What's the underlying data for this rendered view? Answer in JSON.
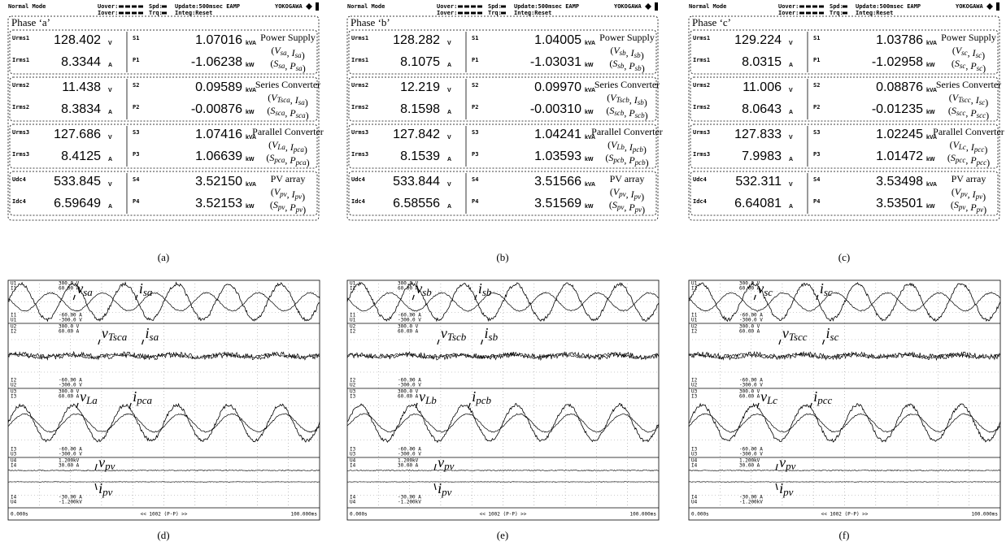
{
  "meter_header": {
    "mode": "Normal Mode",
    "uover": "Uover:",
    "spd": "Spd:",
    "update": "Update:500msec EAMP",
    "brand": "YOKOGAWA",
    "iover": "Iover:",
    "trq": "Trq:",
    "integ": "Integ:Reset"
  },
  "meters": [
    {
      "caption": "(a)",
      "phase": "Phase ‘a’",
      "groups": [
        {
          "rows": [
            {
              "name": "Urms1",
              "value": "128.402",
              "unit": "V",
              "p_name": "S1",
              "p_value": "1.07016",
              "p_unit": "kVA"
            },
            {
              "name": "Irms1",
              "value": "8.3344",
              "unit": "A",
              "p_name": "P1",
              "p_value": "-1.06238",
              "p_unit": "kW"
            }
          ],
          "desc": [
            "Power Supply",
            "(Vsa, Isa)",
            "(Ssa, Psa)"
          ]
        },
        {
          "rows": [
            {
              "name": "Urms2",
              "value": "11.438",
              "unit": "V",
              "p_name": "S2",
              "p_value": "0.09589",
              "p_unit": "kVA"
            },
            {
              "name": "Irms2",
              "value": "8.3834",
              "unit": "A",
              "p_name": "P2",
              "p_value": "-0.00876",
              "p_unit": "kW"
            }
          ],
          "desc": [
            "Series Converter",
            "(VTsca, Isa)",
            "(Ssca, Psca)"
          ]
        },
        {
          "rows": [
            {
              "name": "Urms3",
              "value": "127.686",
              "unit": "V",
              "p_name": "S3",
              "p_value": "1.07416",
              "p_unit": "kVA"
            },
            {
              "name": "Irms3",
              "value": "8.4125",
              "unit": "A",
              "p_name": "P3",
              "p_value": "1.06639",
              "p_unit": "kW"
            }
          ],
          "desc": [
            "Parallel Converter",
            "(VLa, Ipca)",
            "(Spca, Ppca)"
          ]
        },
        {
          "rows": [
            {
              "name": "Udc4",
              "value": "533.845",
              "unit": "V",
              "p_name": "S4",
              "p_value": "3.52150",
              "p_unit": "kVA"
            },
            {
              "name": "Idc4",
              "value": "6.59649",
              "unit": "A",
              "p_name": "P4",
              "p_value": "3.52153",
              "p_unit": "kW"
            }
          ],
          "desc": [
            "PV array",
            "(Vpv, Ipv)",
            "(Spv, Ppv)"
          ]
        }
      ]
    },
    {
      "caption": "(b)",
      "phase": "Phase ‘b’",
      "groups": [
        {
          "rows": [
            {
              "name": "Urms1",
              "value": "128.282",
              "unit": "V",
              "p_name": "S1",
              "p_value": "1.04005",
              "p_unit": "kVA"
            },
            {
              "name": "Irms1",
              "value": "8.1075",
              "unit": "A",
              "p_name": "P1",
              "p_value": "-1.03031",
              "p_unit": "kW"
            }
          ],
          "desc": [
            "Power Supply",
            "(Vsb, Isb)",
            "(Ssb, Psb)"
          ]
        },
        {
          "rows": [
            {
              "name": "Urms2",
              "value": "12.219",
              "unit": "V",
              "p_name": "S2",
              "p_value": "0.09970",
              "p_unit": "kVA"
            },
            {
              "name": "Irms2",
              "value": "8.1598",
              "unit": "A",
              "p_name": "P2",
              "p_value": "-0.00310",
              "p_unit": "kW"
            }
          ],
          "desc": [
            "Series Converter",
            "(VTscb, Isb)",
            "(Sscb, Pscb)"
          ]
        },
        {
          "rows": [
            {
              "name": "Urms3",
              "value": "127.842",
              "unit": "V",
              "p_name": "S3",
              "p_value": "1.04241",
              "p_unit": "kVA"
            },
            {
              "name": "Irms3",
              "value": "8.1539",
              "unit": "A",
              "p_name": "P3",
              "p_value": "1.03593",
              "p_unit": "kW"
            }
          ],
          "desc": [
            "Parallel Converter",
            "(VLb, Ipcb)",
            "(Spcb, Ppcb)"
          ]
        },
        {
          "rows": [
            {
              "name": "Udc4",
              "value": "533.844",
              "unit": "V",
              "p_name": "S4",
              "p_value": "3.51566",
              "p_unit": "kVA"
            },
            {
              "name": "Idc4",
              "value": "6.58556",
              "unit": "A",
              "p_name": "P4",
              "p_value": "3.51569",
              "p_unit": "kW"
            }
          ],
          "desc": [
            "PV array",
            "(Vpv, Ipv)",
            "(Spv, Ppv)"
          ]
        }
      ]
    },
    {
      "caption": "(c)",
      "phase": "Phase ‘c’",
      "groups": [
        {
          "rows": [
            {
              "name": "Urms1",
              "value": "129.224",
              "unit": "V",
              "p_name": "S1",
              "p_value": "1.03786",
              "p_unit": "kVA"
            },
            {
              "name": "Irms1",
              "value": "8.0315",
              "unit": "A",
              "p_name": "P1",
              "p_value": "-1.02958",
              "p_unit": "kW"
            }
          ],
          "desc": [
            "Power Supply",
            "(Vsc, Isc)",
            "(Ssc, Psc)"
          ]
        },
        {
          "rows": [
            {
              "name": "Urms2",
              "value": "11.006",
              "unit": "V",
              "p_name": "S2",
              "p_value": "0.08876",
              "p_unit": "kVA"
            },
            {
              "name": "Irms2",
              "value": "8.0643",
              "unit": "A",
              "p_name": "P2",
              "p_value": "-0.01235",
              "p_unit": "kW"
            }
          ],
          "desc": [
            "Series Converter",
            "(VTscc, Isc)",
            "(Sscc, Pscc)"
          ]
        },
        {
          "rows": [
            {
              "name": "Urms3",
              "value": "127.833",
              "unit": "V",
              "p_name": "S3",
              "p_value": "1.02245",
              "p_unit": "kVA"
            },
            {
              "name": "Irms3",
              "value": "7.9983",
              "unit": "A",
              "p_name": "P3",
              "p_value": "1.01472",
              "p_unit": "kW"
            }
          ],
          "desc": [
            "Parallel Converter",
            "(VLc, Ipcc)",
            "(Spcc, Ppcc)"
          ]
        },
        {
          "rows": [
            {
              "name": "Udc4",
              "value": "532.311",
              "unit": "V",
              "p_name": "S4",
              "p_value": "3.53498",
              "p_unit": "kVA"
            },
            {
              "name": "Idc4",
              "value": "6.64081",
              "unit": "A",
              "p_name": "P4",
              "p_value": "3.53501",
              "p_unit": "kW"
            }
          ],
          "desc": [
            "PV array",
            "(Vpv, Ipv)",
            "(Spv, Ppv)"
          ]
        }
      ]
    }
  ],
  "scope_channels": [
    {
      "top": [
        {
          "ch": "U1",
          "scale": "300.0 V"
        },
        {
          "ch": "I1",
          "scale": "60.00 A"
        }
      ],
      "bottom": [
        {
          "ch": "I1",
          "scale": "-60.00 A"
        },
        {
          "ch": "U1",
          "scale": "-300.0 V"
        }
      ]
    },
    {
      "top": [
        {
          "ch": "U2",
          "scale": "300.0 V"
        },
        {
          "ch": "I2",
          "scale": "60.00 A"
        }
      ],
      "bottom": [
        {
          "ch": "I2",
          "scale": "-60.00 A"
        },
        {
          "ch": "U2",
          "scale": "-300.0 V"
        }
      ]
    },
    {
      "top": [
        {
          "ch": "U3",
          "scale": "300.0 V"
        },
        {
          "ch": "I3",
          "scale": "60.00 A"
        }
      ],
      "bottom": [
        {
          "ch": "I3",
          "scale": "-60.00 A"
        },
        {
          "ch": "U3",
          "scale": "-300.0 V"
        }
      ]
    },
    {
      "top": [
        {
          "ch": "U4",
          "scale": "1.200kV"
        },
        {
          "ch": "I4",
          "scale": "30.00 A"
        }
      ],
      "bottom": [
        {
          "ch": "I4",
          "scale": "-30.00 A"
        },
        {
          "ch": "U4",
          "scale": "-1.200kV"
        }
      ]
    }
  ],
  "scope_footer": {
    "start": "0.000s",
    "record": "<< 1002 (P-P) >>",
    "end": "100.000ms"
  },
  "scopes": [
    {
      "caption": "(d)",
      "annotations": [
        [
          {
            "sym": "v",
            "sub": "sa"
          },
          {
            "sym": "i",
            "sub": "sa"
          }
        ],
        [
          {
            "sym": "v",
            "sub": "Tsca"
          },
          {
            "sym": "i",
            "sub": "sa"
          }
        ],
        [
          {
            "sym": "v",
            "sub": "La"
          },
          {
            "sym": "i",
            "sub": "pca"
          }
        ],
        [
          {
            "sym": "v",
            "sub": "pv"
          },
          {
            "sym": "i",
            "sub": "pv"
          }
        ]
      ]
    },
    {
      "caption": "(e)",
      "annotations": [
        [
          {
            "sym": "v",
            "sub": "sb"
          },
          {
            "sym": "i",
            "sub": "sb"
          }
        ],
        [
          {
            "sym": "v",
            "sub": "Tscb"
          },
          {
            "sym": "i",
            "sub": "sb"
          }
        ],
        [
          {
            "sym": "v",
            "sub": "Lb"
          },
          {
            "sym": "i",
            "sub": "pcb"
          }
        ],
        [
          {
            "sym": "v",
            "sub": "pv"
          },
          {
            "sym": "i",
            "sub": "pv"
          }
        ]
      ]
    },
    {
      "caption": "(f)",
      "annotations": [
        [
          {
            "sym": "v",
            "sub": "sc"
          },
          {
            "sym": "i",
            "sub": "sc"
          }
        ],
        [
          {
            "sym": "v",
            "sub": "Tscc"
          },
          {
            "sym": "i",
            "sub": "sc"
          }
        ],
        [
          {
            "sym": "v",
            "sub": "Lc"
          },
          {
            "sym": "i",
            "sub": "pcc"
          }
        ],
        [
          {
            "sym": "v",
            "sub": "pv"
          },
          {
            "sym": "i",
            "sub": "pv"
          }
        ]
      ]
    }
  ]
}
